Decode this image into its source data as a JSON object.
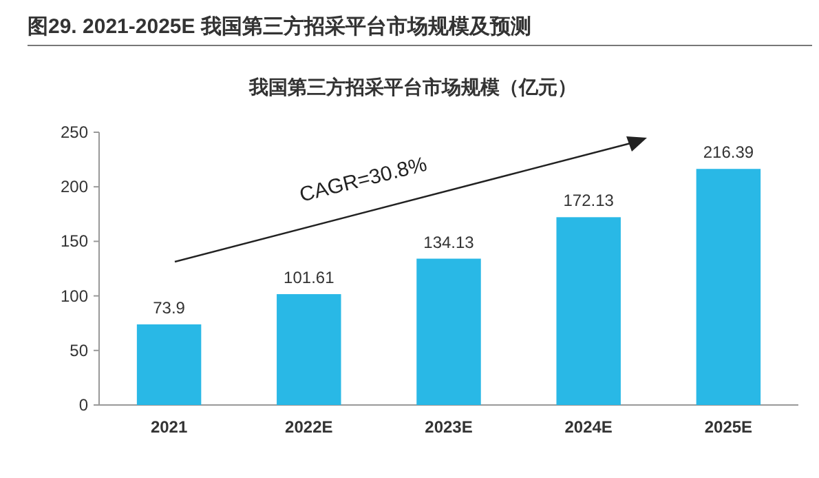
{
  "chart_data": {
    "type": "bar",
    "title": "图29. 2021-2025E 我国第三方招采平台市场规模及预测",
    "subtitle": "我国第三方招采平台市场规模（亿元）",
    "categories": [
      "2021",
      "2022E",
      "2023E",
      "2024E",
      "2025E"
    ],
    "values": [
      73.9,
      101.61,
      134.13,
      172.13,
      216.39
    ],
    "color": "#29b8e6",
    "ylim": [
      0,
      250
    ],
    "yticks": [
      0,
      50,
      100,
      150,
      200,
      250
    ],
    "grid": false,
    "data_labels": true,
    "annotations": [
      "CAGR=30.8%"
    ]
  }
}
